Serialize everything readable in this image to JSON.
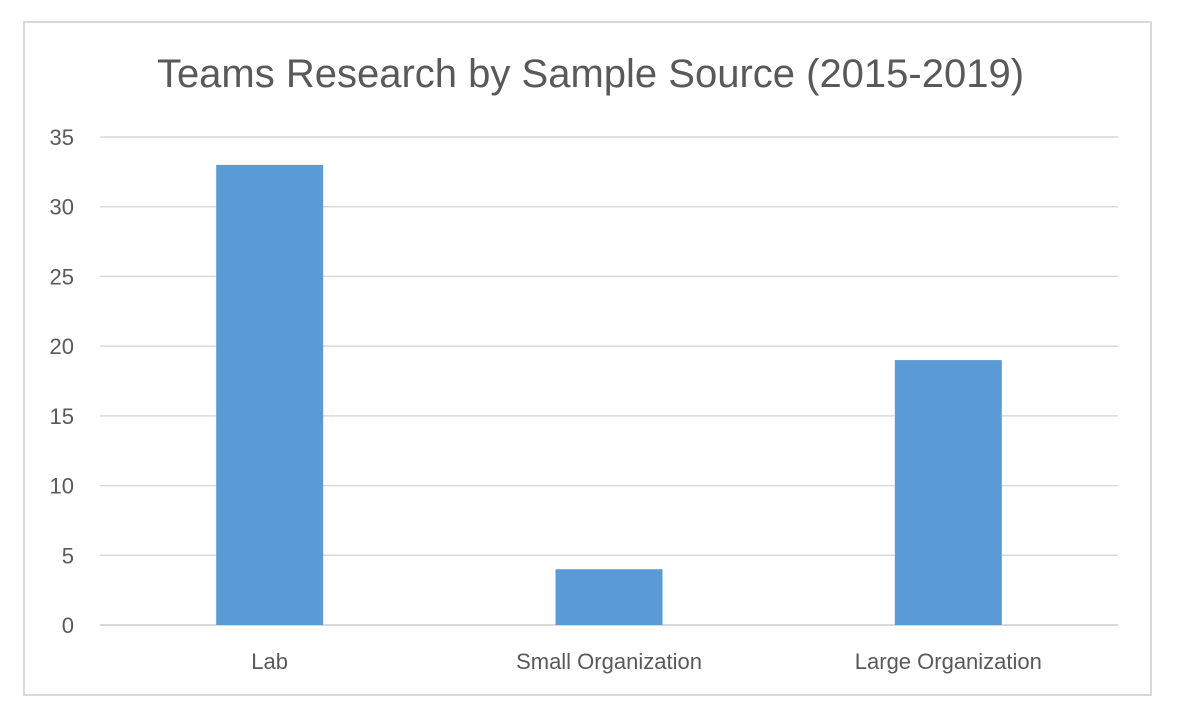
{
  "colors": {
    "bar": "#5b9bd5",
    "grid": "#d9d9d9",
    "text": "#595959",
    "border": "#d9d9d9"
  },
  "chart_data": {
    "type": "bar",
    "title": "Teams Research by Sample Source (2015-2019)",
    "categories": [
      "Lab",
      "Small Organization",
      "Large Organization"
    ],
    "values": [
      33,
      4,
      19
    ],
    "xlabel": "",
    "ylabel": "",
    "ylim": [
      0,
      35
    ],
    "yticks": [
      0,
      5,
      10,
      15,
      20,
      25,
      30,
      35
    ],
    "grid": true,
    "legend": "none"
  }
}
